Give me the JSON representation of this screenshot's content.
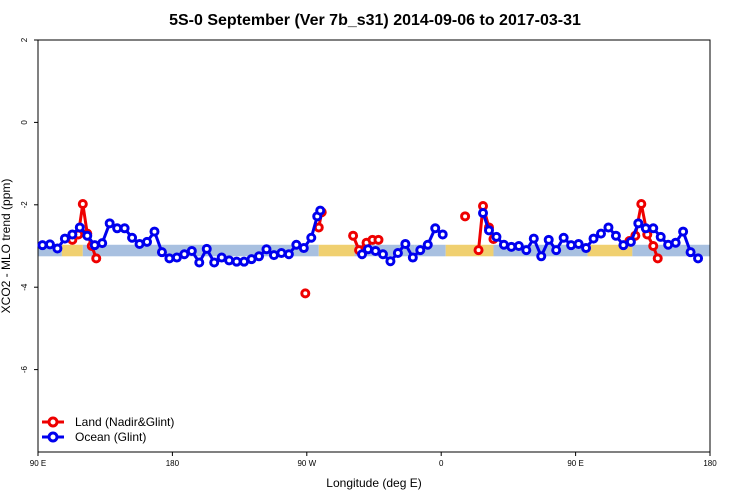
{
  "chart_data": {
    "type": "line",
    "title": "5S-0 September (Ver 7b_s31)   2014-09-06 to 2017-03-31",
    "xlabel": "Longitude (deg E)",
    "ylabel": "XCO2 - MLO trend (ppm)",
    "xlim": [
      90,
      540
    ],
    "ylim": [
      -8,
      2
    ],
    "x_ticks": [
      {
        "value": 90,
        "label": "90 E"
      },
      {
        "value": 180,
        "label": "180"
      },
      {
        "value": 270,
        "label": "90 W"
      },
      {
        "value": 360,
        "label": "0"
      },
      {
        "value": 450,
        "label": "90 E"
      },
      {
        "value": 540,
        "label": "180"
      }
    ],
    "y_ticks": [
      {
        "value": 2,
        "label": "2"
      },
      {
        "value": 0,
        "label": "0"
      },
      {
        "value": -2,
        "label": "-2"
      },
      {
        "value": -4,
        "label": "-4"
      },
      {
        "value": -6,
        "label": "-6"
      }
    ],
    "legend_position": "bottom-left",
    "land_color": "#f0d070",
    "ocean_color": "#a8c0e0",
    "surface_strip": [
      {
        "from": 90,
        "to": 106,
        "surface": "ocean"
      },
      {
        "from": 106,
        "to": 120,
        "surface": "land"
      },
      {
        "from": 120,
        "to": 278,
        "surface": "ocean"
      },
      {
        "from": 278,
        "to": 302,
        "surface": "land"
      },
      {
        "from": 302,
        "to": 342,
        "surface": "ocean"
      },
      {
        "from": 342,
        "to": 363,
        "surface": "ocean"
      },
      {
        "from": 363,
        "to": 395,
        "surface": "land"
      },
      {
        "from": 395,
        "to": 458,
        "surface": "ocean"
      },
      {
        "from": 458,
        "to": 488,
        "surface": "land"
      },
      {
        "from": 488,
        "to": 540,
        "surface": "ocean"
      }
    ],
    "series": [
      {
        "name": "Land (Nadir&Glint)",
        "color": "#ee0000",
        "segments": [
          [
            [
              113,
              -2.85
            ],
            [
              117,
              -2.72
            ],
            [
              120,
              -1.98
            ],
            [
              123,
              -2.7
            ],
            [
              126,
              -3.0
            ],
            [
              129,
              -3.3
            ]
          ],
          [
            [
              269,
              -4.15
            ]
          ],
          [
            [
              278,
              -2.55
            ],
            [
              280,
              -2.18
            ]
          ],
          [
            [
              301,
              -2.75
            ],
            [
              305,
              -3.1
            ],
            [
              310,
              -2.92
            ],
            [
              314,
              -2.85
            ],
            [
              318,
              -2.85
            ]
          ],
          [
            [
              376,
              -2.28
            ]
          ],
          [
            [
              385,
              -3.1
            ],
            [
              388,
              -2.03
            ],
            [
              392,
              -2.55
            ],
            [
              395,
              -2.83
            ]
          ],
          [
            [
              486,
              -2.88
            ],
            [
              490,
              -2.75
            ],
            [
              494,
              -1.98
            ],
            [
              498,
              -2.72
            ],
            [
              502,
              -3.0
            ],
            [
              505,
              -3.3
            ]
          ]
        ]
      },
      {
        "name": "Ocean (Glint)",
        "color": "#0000ee",
        "segments": [
          [
            [
              93,
              -2.98
            ],
            [
              98,
              -2.96
            ],
            [
              103,
              -3.06
            ],
            [
              108,
              -2.82
            ],
            [
              113,
              -2.72
            ],
            [
              118,
              -2.55
            ],
            [
              123,
              -2.75
            ],
            [
              128,
              -2.98
            ],
            [
              133,
              -2.93
            ],
            [
              138,
              -2.45
            ],
            [
              143,
              -2.57
            ],
            [
              148,
              -2.57
            ],
            [
              153,
              -2.8
            ],
            [
              158,
              -2.95
            ],
            [
              163,
              -2.9
            ],
            [
              168,
              -2.65
            ],
            [
              173,
              -3.15
            ],
            [
              178,
              -3.3
            ],
            [
              183,
              -3.28
            ],
            [
              188,
              -3.2
            ],
            [
              193,
              -3.12
            ],
            [
              198,
              -3.4
            ],
            [
              203,
              -3.07
            ],
            [
              208,
              -3.4
            ],
            [
              213,
              -3.28
            ],
            [
              218,
              -3.35
            ],
            [
              223,
              -3.38
            ],
            [
              228,
              -3.38
            ],
            [
              233,
              -3.32
            ],
            [
              238,
              -3.25
            ],
            [
              243,
              -3.08
            ],
            [
              248,
              -3.22
            ],
            [
              253,
              -3.17
            ],
            [
              258,
              -3.2
            ],
            [
              263,
              -2.97
            ],
            [
              268,
              -3.05
            ],
            [
              273,
              -2.8
            ],
            [
              277,
              -2.28
            ],
            [
              279,
              -2.14
            ]
          ],
          [
            [
              307,
              -3.2
            ],
            [
              311,
              -3.08
            ],
            [
              316,
              -3.12
            ],
            [
              321,
              -3.2
            ],
            [
              326,
              -3.37
            ],
            [
              331,
              -3.17
            ],
            [
              336,
              -2.95
            ],
            [
              341,
              -3.28
            ],
            [
              346,
              -3.1
            ],
            [
              351,
              -2.97
            ],
            [
              356,
              -2.57
            ],
            [
              361,
              -2.72
            ]
          ],
          [
            [
              388,
              -2.2
            ],
            [
              392,
              -2.62
            ],
            [
              397,
              -2.78
            ],
            [
              402,
              -2.97
            ],
            [
              407,
              -3.02
            ],
            [
              412,
              -3.0
            ],
            [
              417,
              -3.1
            ],
            [
              422,
              -2.82
            ],
            [
              427,
              -3.25
            ],
            [
              432,
              -2.85
            ],
            [
              437,
              -3.1
            ],
            [
              442,
              -2.8
            ],
            [
              447,
              -2.98
            ],
            [
              452,
              -2.95
            ],
            [
              457,
              -3.05
            ],
            [
              462,
              -2.82
            ],
            [
              467,
              -2.7
            ],
            [
              472,
              -2.55
            ],
            [
              477,
              -2.75
            ],
            [
              482,
              -2.98
            ],
            [
              487,
              -2.9
            ],
            [
              492,
              -2.45
            ],
            [
              497,
              -2.57
            ],
            [
              502,
              -2.57
            ],
            [
              507,
              -2.78
            ],
            [
              512,
              -2.97
            ],
            [
              517,
              -2.92
            ],
            [
              522,
              -2.65
            ],
            [
              527,
              -3.15
            ],
            [
              532,
              -3.3
            ]
          ]
        ]
      }
    ]
  }
}
